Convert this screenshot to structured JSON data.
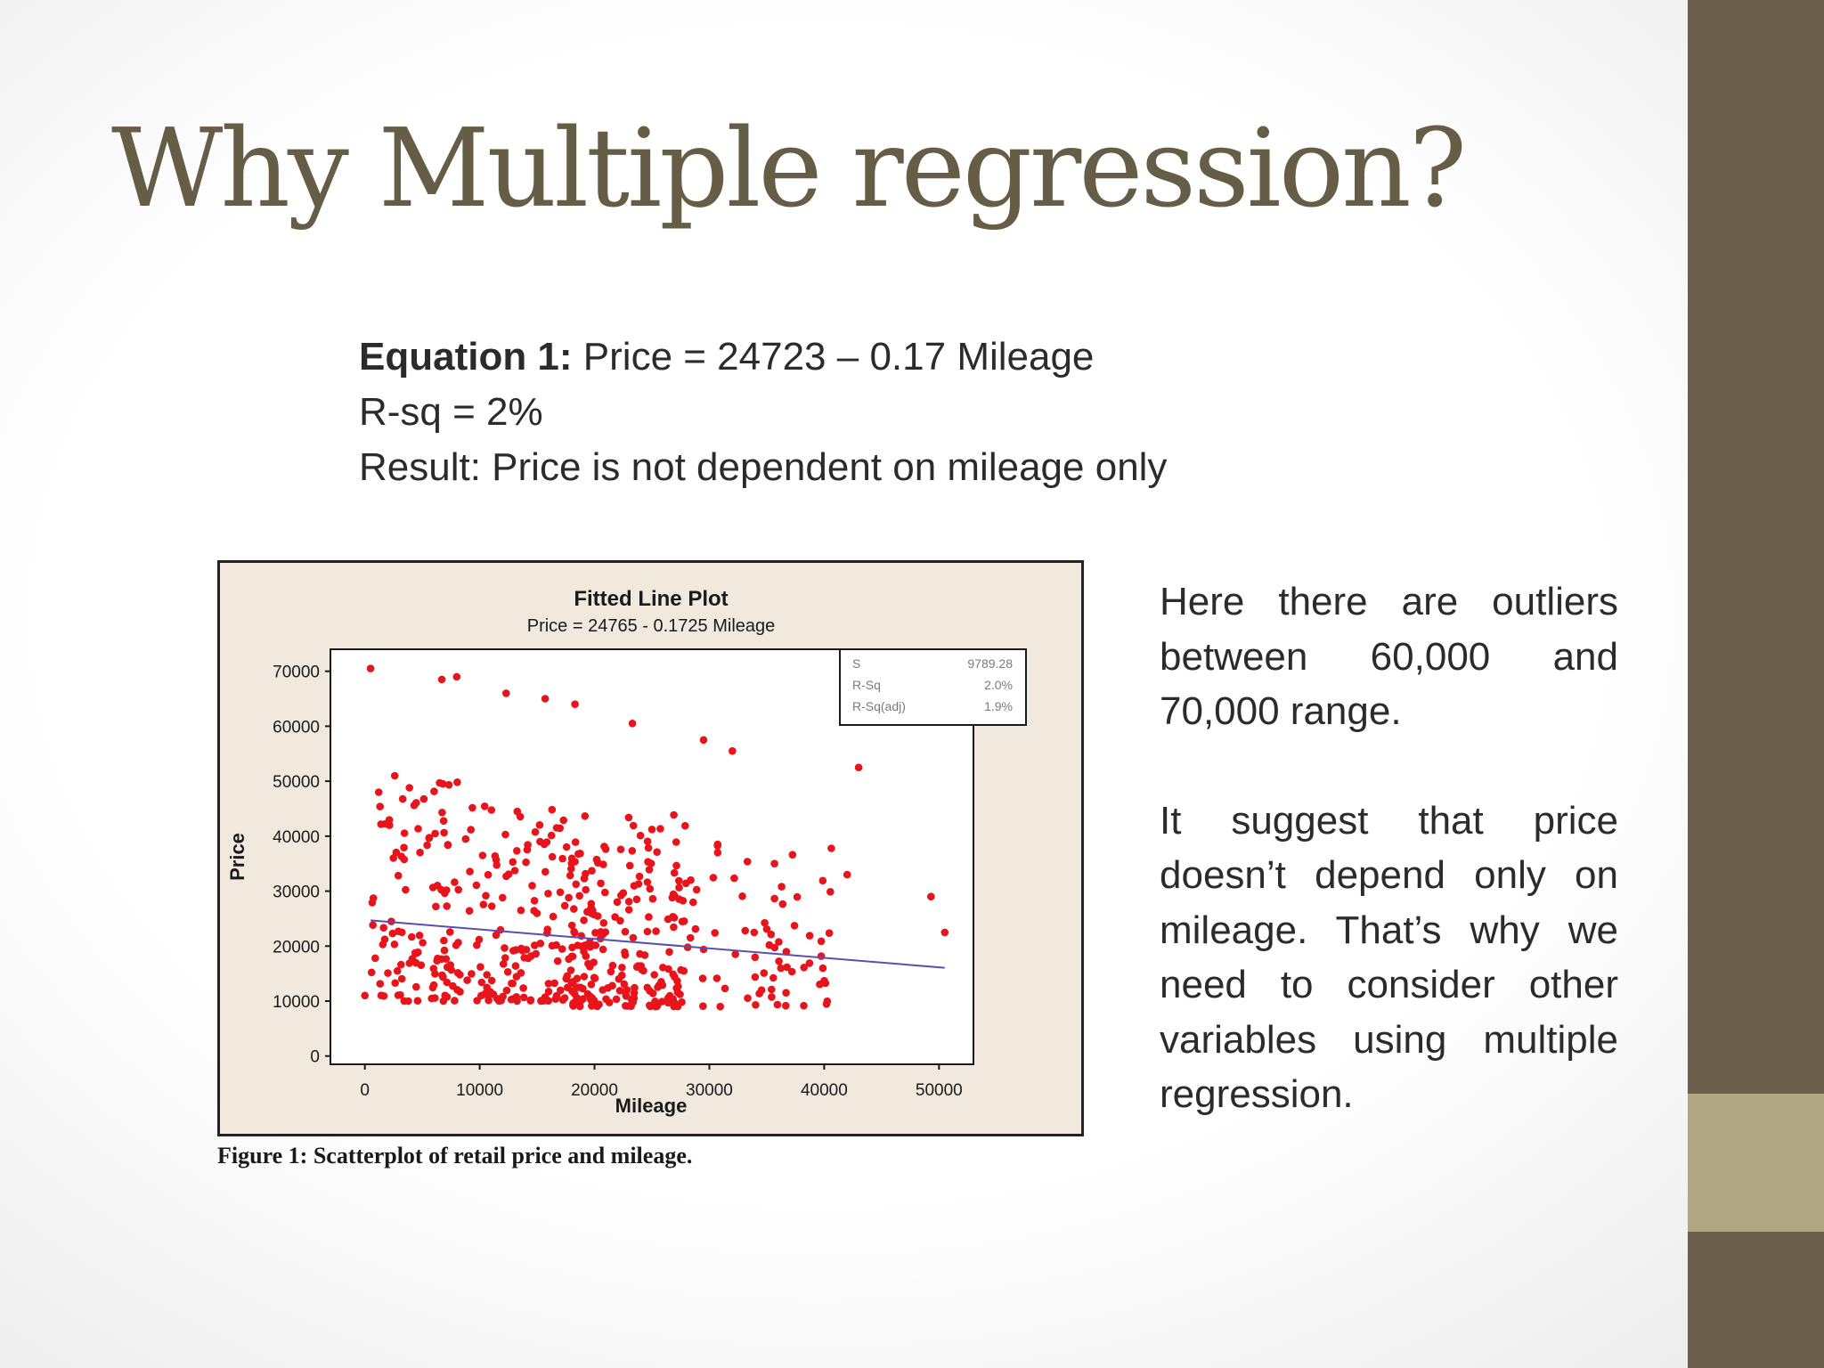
{
  "slide": {
    "title": "Why Multiple regression?",
    "equation_label": "Equation 1:",
    "equation_text": " Price = 24723 – 0.17 Mileage",
    "rsq_text": "R-sq = 2%",
    "result_text": "Result: Price is not dependent on mileage only",
    "paragraph_1": "Here there are outliers between 60,000 and 70,000 range.",
    "paragraph_2": "It suggest that price doesn’t depend only on mileage. That’s why we need to consider other variables using multiple regression.",
    "caption": "Figure 1: Scatterplot of retail price and mileage.",
    "accent_color": "#6b5f4b",
    "band_color": "#aea782",
    "title_color": "#665d47"
  },
  "chart_data": {
    "type": "scatter",
    "title": "Fitted Line Plot",
    "subtitle": "Price =  24765 - 0.1725 Mileage",
    "xlabel": "Mileage",
    "ylabel": "Price",
    "xlim": [
      -3000,
      53000
    ],
    "ylim": [
      -1500,
      74000
    ],
    "x_ticks": [
      0,
      10000,
      20000,
      30000,
      40000,
      50000
    ],
    "y_ticks": [
      0,
      10000,
      20000,
      30000,
      40000,
      50000,
      60000,
      70000
    ],
    "grid": false,
    "point_color": "#e8141b",
    "line_color": "#5a4fb0",
    "fit_line": {
      "intercept": 24765,
      "slope": -0.1725,
      "x_range": [
        500,
        50500
      ]
    },
    "stats": [
      {
        "label": "S",
        "value": "9789.28"
      },
      {
        "label": "R-Sq",
        "value": "2.0%"
      },
      {
        "label": "R-Sq(adj)",
        "value": "1.9%"
      }
    ],
    "highlighted_points": [
      {
        "x": 500,
        "y": 70500
      },
      {
        "x": 6700,
        "y": 68500
      },
      {
        "x": 8000,
        "y": 69000
      },
      {
        "x": 12300,
        "y": 66000
      },
      {
        "x": 15700,
        "y": 65000
      },
      {
        "x": 18300,
        "y": 64000
      },
      {
        "x": 23300,
        "y": 60500
      },
      {
        "x": 29500,
        "y": 57500
      },
      {
        "x": 32000,
        "y": 55500
      },
      {
        "x": 43000,
        "y": 52500
      },
      {
        "x": 50500,
        "y": 22500
      },
      {
        "x": 49300,
        "y": 29000
      },
      {
        "x": 42000,
        "y": 33000
      },
      {
        "x": 0,
        "y": 11000
      },
      {
        "x": 1200,
        "y": 48000
      },
      {
        "x": 2600,
        "y": 51000
      },
      {
        "x": 6800,
        "y": 49500
      }
    ],
    "point_count_estimate": 520,
    "point_clusters": [
      {
        "x_min": 500,
        "x_max": 10000,
        "y_min": 10000,
        "y_max": 50000,
        "count": 120
      },
      {
        "x_min": 10000,
        "x_max": 20000,
        "y_min": 10000,
        "y_max": 46000,
        "count": 150
      },
      {
        "x_min": 18000,
        "x_max": 28000,
        "y_min": 9000,
        "y_max": 44000,
        "count": 180
      },
      {
        "x_min": 28000,
        "x_max": 41000,
        "y_min": 9000,
        "y_max": 40000,
        "count": 70
      }
    ]
  }
}
